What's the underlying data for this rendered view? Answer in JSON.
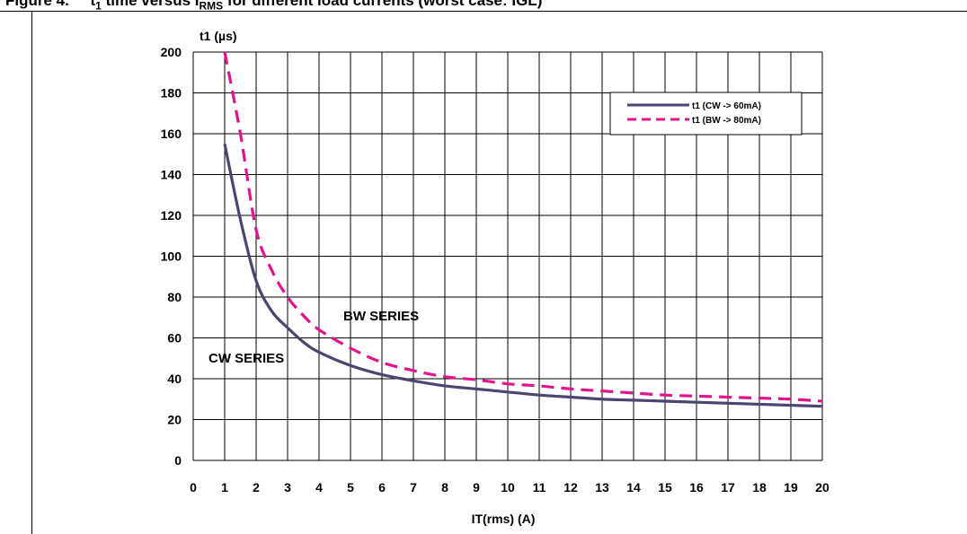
{
  "caption": {
    "prefix": "Figure 4.",
    "text_a": "t",
    "sub_a": "1",
    "text_b": " time versus I",
    "sub_b": "RMS",
    "text_c": " for different load currents (worst case: IGL)"
  },
  "chart_data": {
    "type": "line",
    "xlabel": "IT(rms)  (A)",
    "ylabel": "t1  (µs)",
    "xlim": [
      0,
      20
    ],
    "ylim": [
      0,
      200
    ],
    "xticks": [
      0,
      1,
      2,
      3,
      4,
      5,
      6,
      7,
      8,
      9,
      10,
      11,
      12,
      13,
      14,
      15,
      16,
      17,
      18,
      19,
      20
    ],
    "yticks": [
      0,
      20,
      40,
      60,
      80,
      100,
      120,
      140,
      160,
      180,
      200
    ],
    "grid": true,
    "legend_position": "top-right",
    "series": [
      {
        "name": "t1 (CW -> 60mA)",
        "color": "#4b4670",
        "style": "solid",
        "x": [
          1,
          1.5,
          2,
          2.5,
          3,
          3.5,
          4,
          5,
          6,
          7,
          8,
          9,
          10,
          11,
          12,
          13,
          14,
          15,
          16,
          17,
          18,
          19,
          20
        ],
        "y": [
          155,
          118,
          88,
          73,
          65,
          58,
          53,
          46.5,
          42,
          39,
          36.5,
          35,
          33.5,
          32,
          31,
          30,
          29.5,
          29,
          28.5,
          28,
          27.5,
          27,
          26.5
        ]
      },
      {
        "name": "t1 (BW -> 80mA)",
        "color": "#e0158e",
        "style": "dashed",
        "x": [
          1,
          1.5,
          2,
          2.5,
          3,
          3.5,
          4,
          5,
          6,
          7,
          8,
          9,
          10,
          11,
          12,
          13,
          14,
          15,
          16,
          17,
          18,
          19,
          20
        ],
        "y": [
          200,
          160,
          113,
          93,
          80,
          71,
          64,
          55,
          48,
          44,
          41,
          39.5,
          37.5,
          36.5,
          35,
          34,
          33,
          32,
          31.5,
          31,
          30.5,
          30,
          29
        ]
      }
    ],
    "annotations": [
      "BW SERIES",
      "CW SERIES"
    ]
  }
}
